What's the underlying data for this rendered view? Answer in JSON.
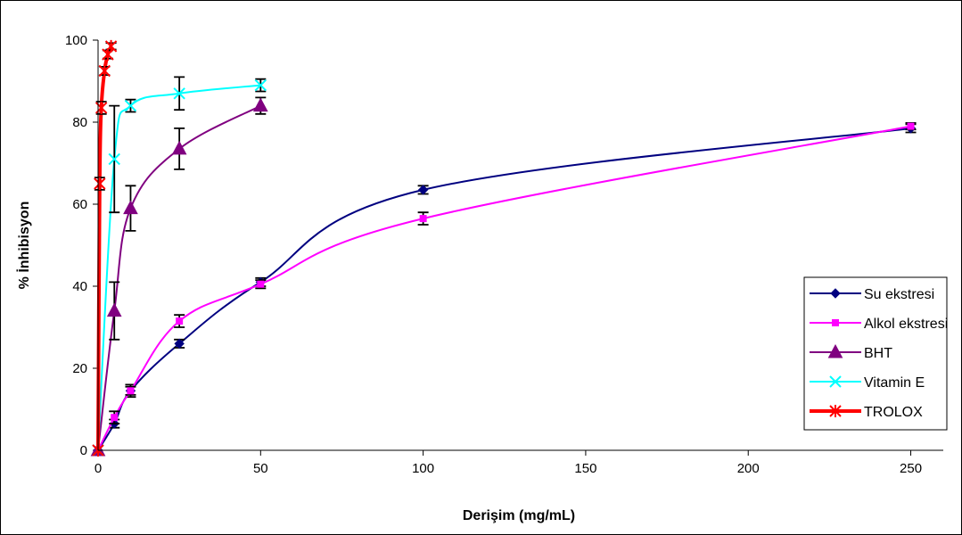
{
  "chart_data": {
    "type": "line",
    "title": "",
    "xlabel": "Derişim (mg/mL)",
    "ylabel": "% İnhibisyon",
    "xlim": [
      0,
      260
    ],
    "ylim": [
      0,
      100
    ],
    "xticks": [
      0,
      50,
      100,
      150,
      200,
      250
    ],
    "yticks": [
      0,
      20,
      40,
      60,
      80,
      100
    ],
    "grid": false,
    "legend_position": "right",
    "series": [
      {
        "name": "Su ekstresi",
        "color": "#000080",
        "marker": "diamond",
        "line_width": 2,
        "x": [
          0,
          5,
          10,
          25,
          50,
          100,
          250
        ],
        "y": [
          0,
          6.5,
          14.5,
          26,
          41,
          63.5,
          78.5
        ],
        "err": [
          0,
          1,
          1.5,
          1,
          1,
          1,
          1
        ]
      },
      {
        "name": "Alkol ekstresi",
        "color": "#FF00FF",
        "marker": "square",
        "line_width": 2,
        "x": [
          0,
          5,
          10,
          25,
          50,
          100,
          250
        ],
        "y": [
          0,
          8,
          14.5,
          31.5,
          40.5,
          56.5,
          79
        ],
        "err": [
          0,
          1.5,
          1,
          1.5,
          1,
          1.5,
          0.8
        ]
      },
      {
        "name": "BHT",
        "color": "#800080",
        "marker": "triangle",
        "line_width": 2,
        "x": [
          0,
          5,
          10,
          25,
          50
        ],
        "y": [
          0,
          34,
          59,
          73.5,
          84
        ],
        "err": [
          0,
          7,
          5.5,
          5,
          2
        ]
      },
      {
        "name": "Vitamin E",
        "color": "#00FFFF",
        "marker": "x",
        "line_width": 2,
        "x": [
          0,
          5,
          10,
          25,
          50
        ],
        "y": [
          0,
          71,
          84,
          87,
          89
        ],
        "err": [
          0,
          13,
          1.5,
          4,
          1.5
        ]
      },
      {
        "name": "TROLOX",
        "color": "#FF0000",
        "marker": "asterisk",
        "line_width": 4,
        "x": [
          0,
          0.5,
          1,
          2,
          3,
          4
        ],
        "y": [
          0,
          65,
          83.5,
          92.5,
          96.5,
          98.5
        ],
        "err": [
          0,
          1.5,
          1.5,
          1,
          1,
          0.8
        ]
      }
    ]
  }
}
